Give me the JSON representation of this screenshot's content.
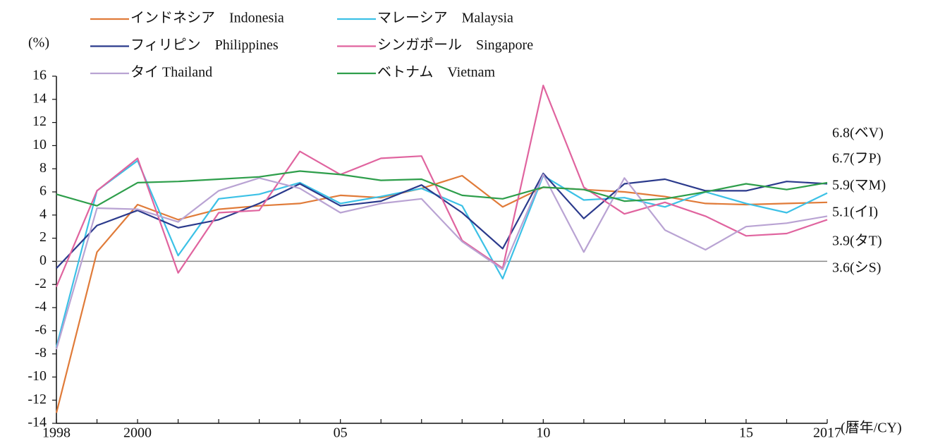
{
  "chart_data": {
    "type": "line",
    "y_label": "(%)",
    "x_label": "(暦年/CY)",
    "categories": [
      "1998",
      null,
      "2000",
      null,
      null,
      null,
      null,
      "05",
      null,
      null,
      null,
      null,
      "10",
      null,
      null,
      null,
      null,
      "15",
      null,
      "2017"
    ],
    "ylim": [
      -14,
      16
    ],
    "yticks": [
      -14,
      -12,
      -10,
      -8,
      -6,
      -4,
      -2,
      0,
      2,
      4,
      6,
      8,
      10,
      12,
      14,
      16
    ],
    "series": [
      {
        "name": "インドネシア　Indonesia",
        "color": "#e07b39",
        "values": [
          -13.1,
          0.8,
          4.9,
          3.6,
          4.5,
          4.8,
          5.0,
          5.7,
          5.5,
          6.3,
          7.4,
          4.7,
          6.4,
          6.2,
          6.0,
          5.6,
          5.0,
          4.9,
          5.0,
          5.1
        ]
      },
      {
        "name": "マレーシア　Malaysia",
        "color": "#3cc1e6",
        "values": [
          -7.4,
          6.1,
          8.7,
          0.5,
          5.4,
          5.8,
          6.8,
          5.0,
          5.6,
          6.3,
          4.8,
          -1.5,
          7.4,
          5.3,
          5.5,
          4.7,
          6.0,
          5.0,
          4.2,
          5.9
        ]
      },
      {
        "name": "フィリピン　Philippines",
        "color": "#2b3a8c",
        "values": [
          -0.6,
          3.1,
          4.4,
          2.9,
          3.6,
          5.0,
          6.7,
          4.8,
          5.2,
          6.6,
          4.2,
          1.1,
          7.6,
          3.7,
          6.7,
          7.1,
          6.1,
          6.1,
          6.9,
          6.7
        ]
      },
      {
        "name": "シンガポール　Singapore",
        "color": "#e0649f",
        "values": [
          -2.2,
          6.1,
          8.9,
          -1.0,
          4.2,
          4.4,
          9.5,
          7.5,
          8.9,
          9.1,
          1.8,
          -0.6,
          15.2,
          6.4,
          4.1,
          5.1,
          3.9,
          2.2,
          2.4,
          3.6
        ]
      },
      {
        "name": "タイ Thailand",
        "color": "#b9a3d3",
        "values": [
          -7.6,
          4.6,
          4.5,
          3.4,
          6.1,
          7.2,
          6.3,
          4.2,
          5.0,
          5.4,
          1.7,
          -0.7,
          7.5,
          0.8,
          7.2,
          2.7,
          1.0,
          3.0,
          3.3,
          3.9
        ]
      },
      {
        "name": "ベトナム　Vietnam",
        "color": "#2e9e4b",
        "values": [
          5.8,
          4.8,
          6.8,
          6.9,
          7.1,
          7.3,
          7.8,
          7.5,
          7.0,
          7.1,
          5.7,
          5.4,
          6.4,
          6.2,
          5.2,
          5.4,
          6.0,
          6.7,
          6.2,
          6.8
        ]
      }
    ],
    "end_labels": [
      "6.8(ベV)",
      "6.7(フP)",
      "5.9(マM)",
      "5.1(イI)",
      "3.9(タT)",
      "3.6(シS)"
    ]
  }
}
